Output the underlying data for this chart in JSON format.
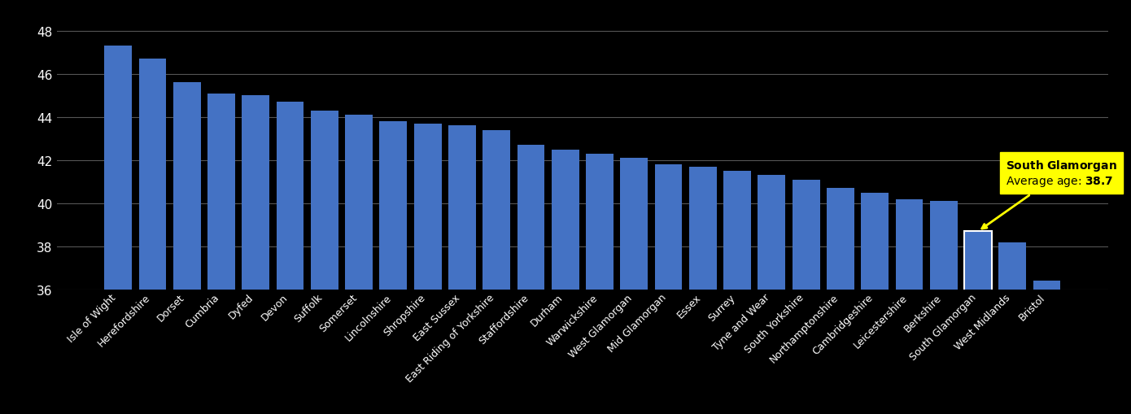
{
  "categories": [
    "Isle of Wight",
    "Herefordshire",
    "Dorset",
    "Cumbria",
    "Dyfed",
    "Devon",
    "Suffolk",
    "Somerset",
    "Lincolnshire",
    "Shropshire",
    "East Sussex",
    "East Riding of Yorkshire",
    "Staffordshire",
    "Durham",
    "Warwickshire",
    "West Glamorgan",
    "Mid Glamorgan",
    "Essex",
    "Surrey",
    "Tyne and Wear",
    "South Yorkshire",
    "Northamptonshire",
    "Cambridgeshire",
    "Leicestershire",
    "Berkshire",
    "South Glamorgan",
    "West Midlands",
    "Bristol"
  ],
  "values": [
    47.3,
    46.7,
    45.6,
    45.1,
    45.0,
    44.7,
    44.3,
    44.1,
    43.8,
    43.7,
    43.6,
    43.4,
    42.7,
    42.5,
    42.3,
    42.1,
    41.8,
    41.7,
    41.5,
    41.3,
    41.1,
    40.7,
    40.5,
    40.2,
    40.1,
    38.7,
    38.2,
    36.4
  ],
  "highlight_index": 25,
  "bar_color": "#4472C4",
  "annotation_bg_color": "#FFFF00",
  "annotation_text_color": "#000000",
  "highlight_name": "South Glamorgan",
  "highlight_age": "38.7",
  "background_color": "#000000",
  "grid_color": "#555555",
  "text_color": "#FFFFFF",
  "ylim_min": 36,
  "ylim_max": 48.5,
  "yticks": [
    36,
    38,
    40,
    42,
    44,
    46,
    48
  ]
}
